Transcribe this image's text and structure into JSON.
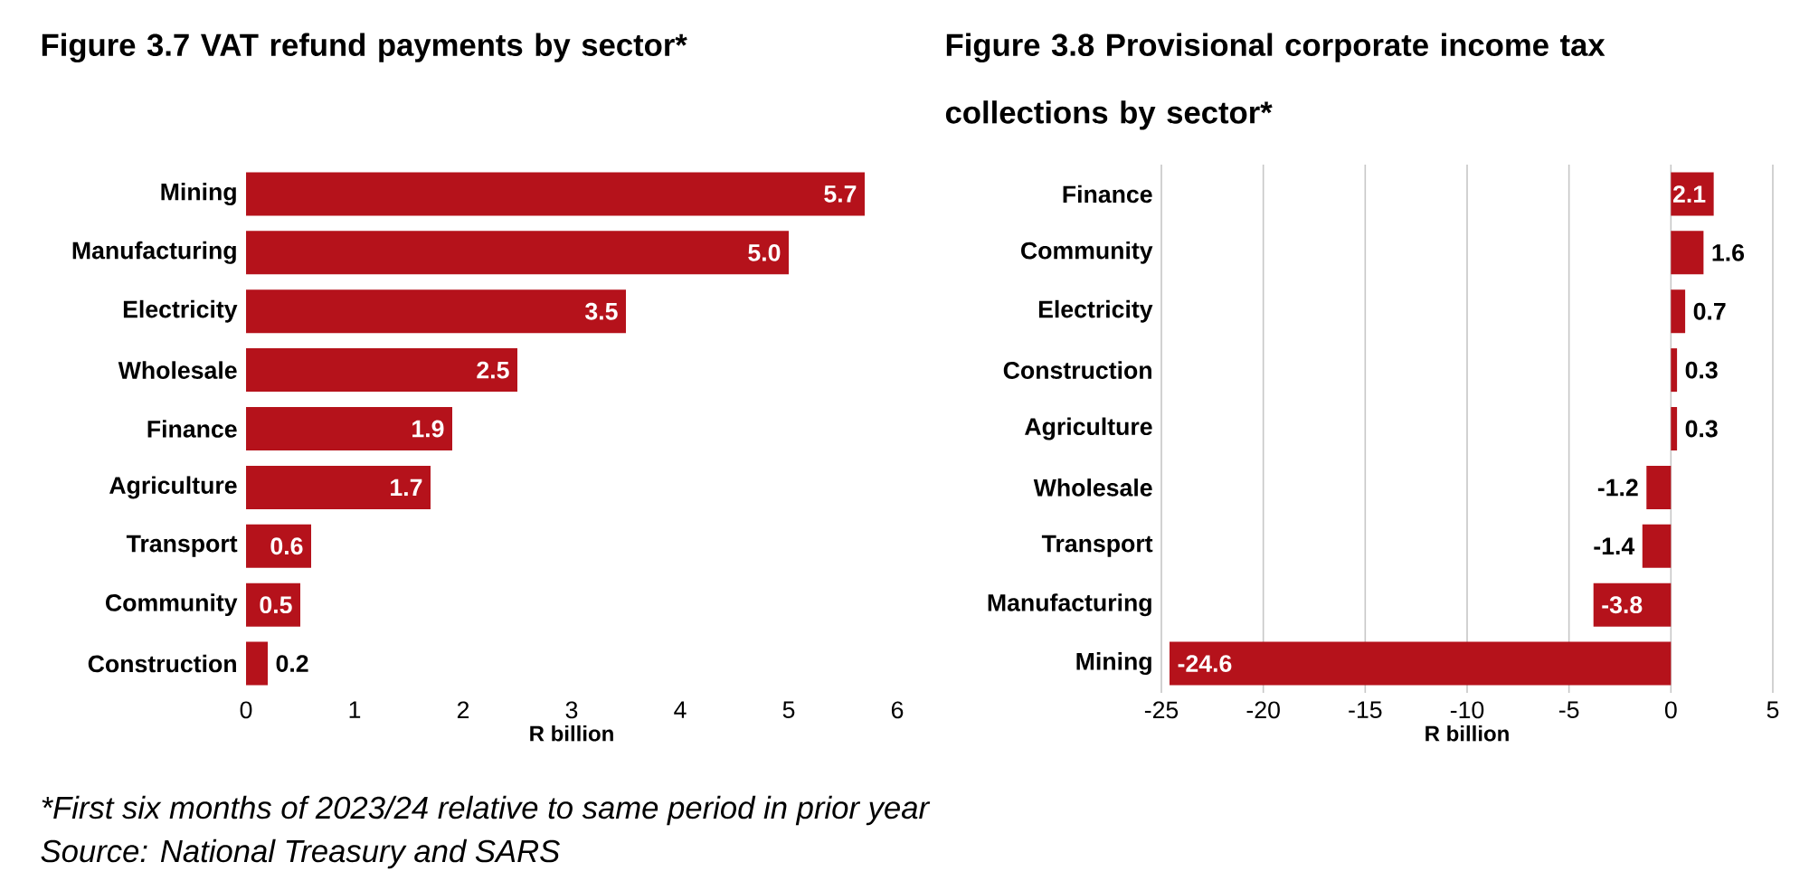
{
  "chart_data": [
    {
      "type": "bar",
      "orientation": "horizontal",
      "title": "Figure 3.7 VAT refund payments by sector*",
      "xlabel": "R billion",
      "categories": [
        "Mining",
        "Manufacturing",
        "Electricity",
        "Wholesale",
        "Finance",
        "Agriculture",
        "Transport",
        "Community",
        "Construction"
      ],
      "values": [
        5.7,
        5.0,
        3.5,
        2.5,
        1.9,
        1.7,
        0.6,
        0.5,
        0.2
      ],
      "value_labels": [
        "5.7",
        "5.0",
        "3.5",
        "2.5",
        "1.9",
        "1.7",
        "0.6",
        "0.5",
        "0.2"
      ],
      "color": "#b5121b",
      "xlim": [
        0,
        6
      ],
      "xticks": [
        0,
        1,
        2,
        3,
        4,
        5,
        6
      ],
      "annotations": [
        "*First six months of 2023/24 relative to same period in prior year",
        "Source: National Treasury and SARS"
      ]
    },
    {
      "type": "bar",
      "orientation": "horizontal",
      "title": "Figure 3.8 Provisional corporate income tax collections by sector*",
      "xlabel": "R billion",
      "categories": [
        "Finance",
        "Community",
        "Electricity",
        "Construction",
        "Agriculture",
        "Wholesale",
        "Transport",
        "Manufacturing",
        "Mining"
      ],
      "values": [
        2.1,
        1.6,
        0.7,
        0.3,
        0.3,
        -1.2,
        -1.4,
        -3.8,
        -24.6
      ],
      "value_labels": [
        "2.1",
        "1.6",
        "0.7",
        "0.3",
        "0.3",
        "-1.2",
        "-1.4",
        "-3.8",
        "-24.6"
      ],
      "color": "#b5121b",
      "xlim": [
        -25,
        5
      ],
      "xticks": [
        -25,
        -20,
        -15,
        -10,
        -5,
        0,
        5
      ],
      "grid": "x"
    }
  ]
}
